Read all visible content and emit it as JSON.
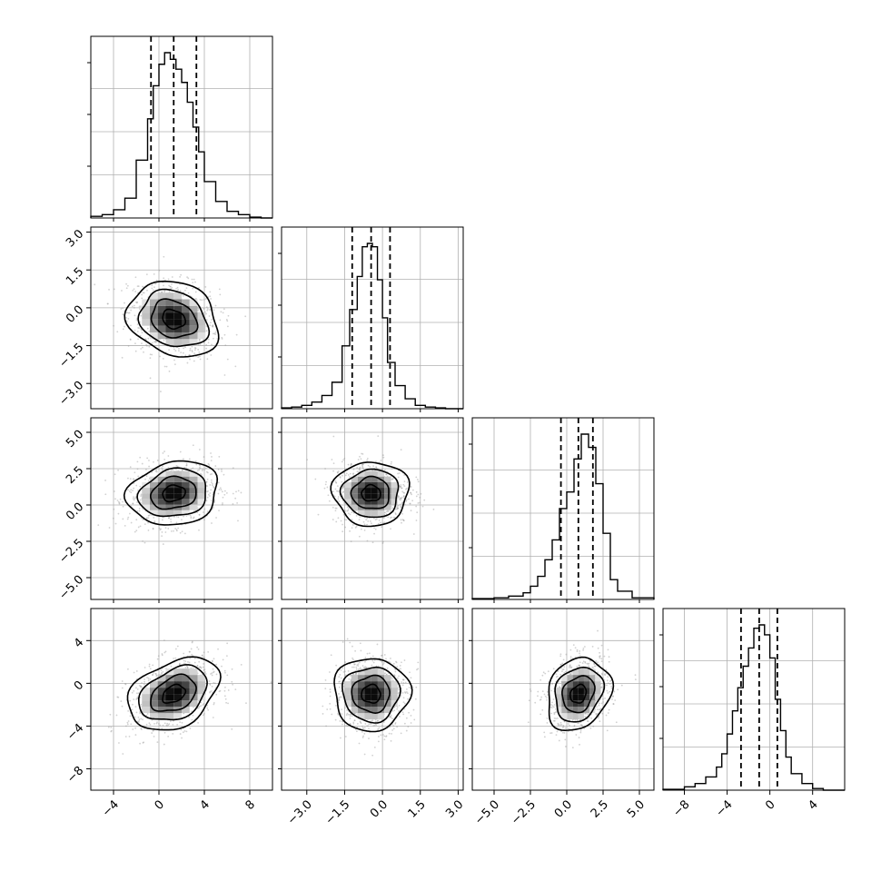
{
  "chart_data": {
    "type": "corner",
    "n_params": 4,
    "panel_grid": "lower-triangle",
    "grid": true,
    "colors": {
      "hist": "#000000",
      "quantile": "#000000",
      "gridline": "#b0b0b0",
      "points": "#9a9a9a",
      "density_max": "#000000"
    },
    "params": [
      {
        "range": [
          -6,
          10
        ],
        "ticks": [
          -4,
          0,
          4,
          8
        ],
        "tick_labels": [
          "−4",
          "0",
          "4",
          "8"
        ],
        "median": 1.3,
        "q16": -0.7,
        "q84": 3.3,
        "std": 2.0
      },
      {
        "range": [
          -4,
          3.2
        ],
        "ticks": [
          -3,
          -1.5,
          0,
          1.5,
          3
        ],
        "tick_labels": [
          "−3.0",
          "−1.5",
          "0.0",
          "1.5",
          "3.0"
        ],
        "median": -0.45,
        "q16": -1.2,
        "q84": 0.3,
        "std": 0.75
      },
      {
        "range": [
          -6.5,
          6
        ],
        "ticks": [
          -5,
          -2.5,
          0,
          2.5,
          5
        ],
        "tick_labels": [
          "−5.0",
          "−2.5",
          "0.0",
          "2.5",
          "5.0"
        ],
        "median": 0.8,
        "q16": -0.4,
        "q84": 1.8,
        "std": 1.1
      },
      {
        "range": [
          -10,
          7
        ],
        "ticks": [
          -8,
          -4,
          0,
          4
        ],
        "tick_labels": [
          "−8",
          "−4",
          "0",
          "4"
        ],
        "median": -1.0,
        "q16": -2.7,
        "q84": 0.7,
        "std": 1.7
      }
    ],
    "histograms": [
      {
        "param": 0,
        "bin_edges": [
          -6,
          -5,
          -4,
          -3,
          -2,
          -1,
          -0.5,
          0,
          0.5,
          1,
          1.5,
          2,
          2.5,
          3,
          3.5,
          4,
          5,
          6,
          7,
          8,
          9,
          10
        ],
        "counts": [
          0.01,
          0.02,
          0.05,
          0.12,
          0.35,
          0.6,
          0.8,
          0.93,
          1.0,
          0.96,
          0.9,
          0.82,
          0.7,
          0.55,
          0.4,
          0.22,
          0.1,
          0.04,
          0.02,
          0.005,
          0
        ]
      },
      {
        "param": 1,
        "bin_edges": [
          -4,
          -3.6,
          -3.2,
          -2.8,
          -2.4,
          -2.0,
          -1.6,
          -1.3,
          -1.0,
          -0.8,
          -0.6,
          -0.4,
          -0.2,
          0,
          0.2,
          0.5,
          0.9,
          1.3,
          1.7,
          2.1,
          2.5,
          3.2
        ],
        "counts": [
          0.005,
          0.01,
          0.02,
          0.04,
          0.08,
          0.16,
          0.38,
          0.6,
          0.8,
          0.98,
          1.0,
          0.98,
          0.78,
          0.55,
          0.28,
          0.14,
          0.06,
          0.02,
          0.01,
          0.005,
          0
        ]
      },
      {
        "param": 2,
        "bin_edges": [
          -6.5,
          -5,
          -4,
          -3,
          -2.5,
          -2,
          -1.5,
          -1,
          -0.5,
          0,
          0.5,
          1,
          1.5,
          2,
          2.5,
          3,
          3.5,
          4.5,
          6
        ],
        "counts": [
          0.005,
          0.01,
          0.02,
          0.04,
          0.08,
          0.14,
          0.24,
          0.36,
          0.55,
          0.65,
          0.85,
          1.0,
          0.92,
          0.7,
          0.4,
          0.12,
          0.05,
          0.01
        ]
      },
      {
        "param": 3,
        "bin_edges": [
          -10,
          -8,
          -7,
          -6,
          -5,
          -4.5,
          -4,
          -3.5,
          -3,
          -2.5,
          -2,
          -1.5,
          -1,
          -0.5,
          0,
          0.5,
          1,
          1.5,
          2,
          3,
          4,
          5,
          7
        ],
        "counts": [
          0.005,
          0.02,
          0.04,
          0.08,
          0.14,
          0.22,
          0.34,
          0.48,
          0.62,
          0.75,
          0.86,
          0.98,
          1.0,
          0.94,
          0.8,
          0.55,
          0.36,
          0.2,
          0.1,
          0.04,
          0.01,
          0
        ]
      }
    ],
    "correlations": [
      {
        "row": 1,
        "col": 0,
        "rho": -0.2
      },
      {
        "row": 2,
        "col": 0,
        "rho": 0.15
      },
      {
        "row": 2,
        "col": 1,
        "rho": 0.0
      },
      {
        "row": 3,
        "col": 0,
        "rho": 0.35
      },
      {
        "row": 3,
        "col": 1,
        "rho": 0.0
      },
      {
        "row": 3,
        "col": 2,
        "rho": 0.2
      }
    ],
    "contour_levels_sigma": [
      0.5,
      1.0,
      1.5,
      2.0
    ]
  }
}
